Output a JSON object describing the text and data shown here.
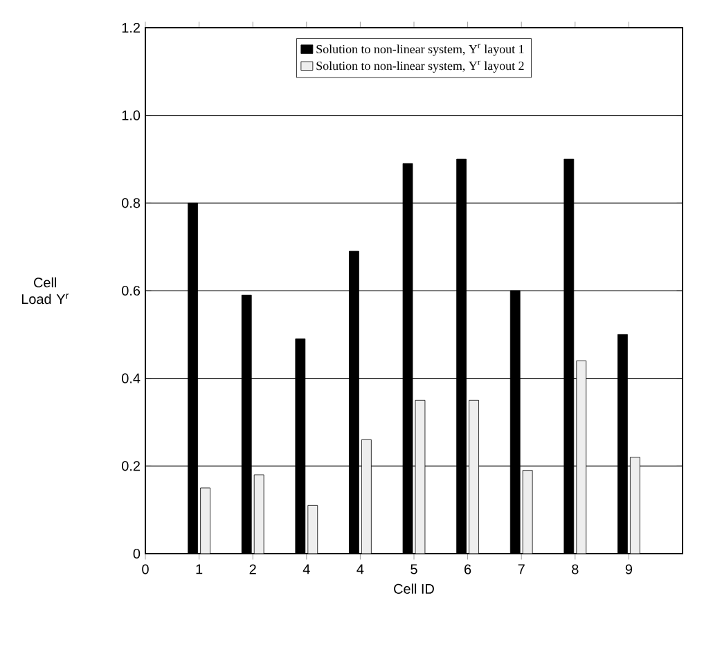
{
  "chart_data": {
    "type": "bar",
    "xlabel": "Cell ID",
    "ylabel": "Cell Load Υ$^{r}$",
    "categories": [
      "0",
      "1",
      "2",
      "4",
      "4",
      "5",
      "6",
      "7",
      "8",
      "9"
    ],
    "ylim": [
      0,
      1.2
    ],
    "yticks": [
      0,
      0.2,
      0.4,
      0.6,
      0.8,
      {
        "value": 1.0,
        "label": "1.0"
      },
      1.2
    ],
    "grid": "y",
    "legend": "top",
    "series": [
      {
        "name": "Solution to non-linear system, Υ$^{r}$ layout 1",
        "color": "#000000",
        "values": [
          null,
          0.8,
          0.59,
          0.49,
          0.69,
          0.89,
          0.9,
          0.6,
          0.9,
          0.5
        ]
      },
      {
        "name": "Solution to non-linear system, Υ$^{r}$ layout 2",
        "color": "#eeeeee",
        "values": [
          null,
          0.15,
          0.18,
          0.11,
          0.26,
          0.35,
          0.35,
          0.19,
          0.44,
          0.22
        ]
      }
    ]
  }
}
